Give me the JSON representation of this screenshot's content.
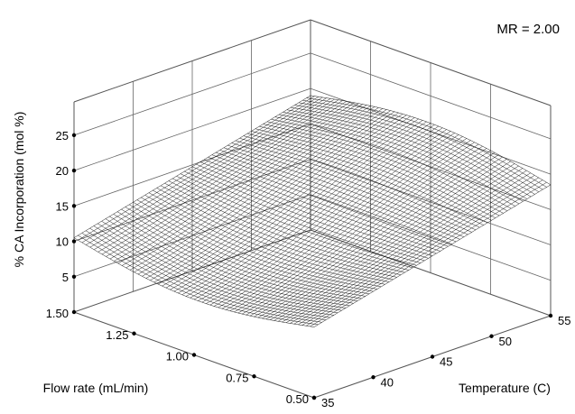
{
  "chart_data": {
    "type": "surface3d",
    "annotation": "MR = 2.00",
    "zlabel": "% CA Incorporation (mol %)",
    "xlabel": "Flow rate (mL/min)",
    "ylabel": "Temperature (C)",
    "x_ticks": [
      "0.50",
      "0.75",
      "1.00",
      "1.25",
      "1.50"
    ],
    "y_ticks": [
      "35",
      "40",
      "45",
      "50",
      "55"
    ],
    "z_ticks": [
      "5",
      "10",
      "15",
      "20",
      "25"
    ],
    "xlim": [
      0.5,
      1.5
    ],
    "ylim": [
      35,
      55
    ],
    "zlim": [
      0,
      25
    ],
    "grid": true,
    "surface_corners": {
      "flow_1.50_temp_35": 10.5,
      "flow_0.50_temp_35": 10.0,
      "flow_0.50_temp_55": 18.5,
      "flow_1.50_temp_55": 19.0,
      "center_saddle": 14.0
    }
  }
}
